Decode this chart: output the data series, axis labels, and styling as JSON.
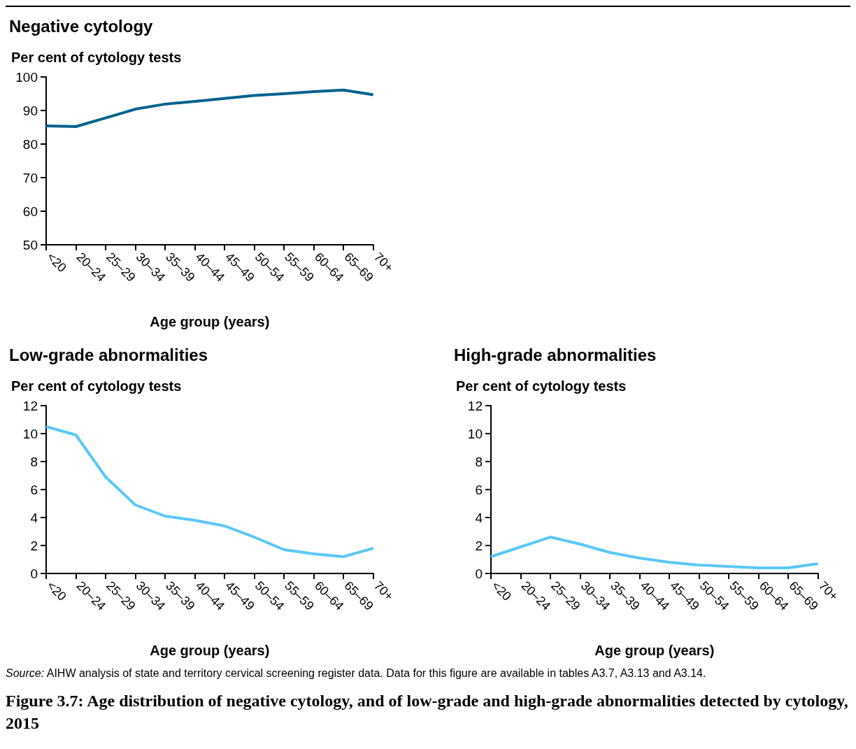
{
  "chart_data": [
    {
      "type": "line",
      "title": "Negative cytology",
      "ylabel": "Per cent of cytology tests",
      "xlabel": "Age group (years)",
      "categories": [
        "<20",
        "20–24",
        "25–29",
        "30–34",
        "35–39",
        "40–44",
        "45–49",
        "50–54",
        "55–59",
        "60–64",
        "65–69",
        "70+"
      ],
      "series": [
        {
          "color": "#00628f",
          "values": [
            85.4,
            85.2,
            87.8,
            90.4,
            91.9,
            92.7,
            93.6,
            94.5,
            95.0,
            95.6,
            96.1,
            94.7
          ]
        }
      ],
      "ylim": [
        50,
        100
      ],
      "yticks": [
        50,
        60,
        70,
        80,
        90,
        100
      ],
      "grid": false,
      "marker": "none",
      "line_style": "solid"
    },
    {
      "type": "line",
      "title": "Low-grade abnormalities",
      "ylabel": "Per cent of cytology tests",
      "xlabel": "Age group (years)",
      "categories": [
        "<20",
        "20–24",
        "25–29",
        "30–34",
        "35–39",
        "40–44",
        "45–49",
        "50–54",
        "55–59",
        "60–64",
        "65–69",
        "70+"
      ],
      "series": [
        {
          "color": "#5bc8fa",
          "values": [
            10.5,
            9.9,
            6.9,
            4.9,
            4.1,
            3.8,
            3.4,
            2.6,
            1.7,
            1.4,
            1.2,
            1.8
          ]
        }
      ],
      "ylim": [
        0,
        12
      ],
      "yticks": [
        0,
        2,
        4,
        6,
        8,
        10,
        12
      ],
      "grid": false,
      "marker": "none",
      "line_style": "solid"
    },
    {
      "type": "line",
      "title": "High-grade abnormalities",
      "ylabel": "Per cent of cytology tests",
      "xlabel": "Age group (years)",
      "categories": [
        "<20",
        "20–24",
        "25–29",
        "30–34",
        "35–39",
        "40–44",
        "45–49",
        "50–54",
        "55–59",
        "60–64",
        "65–69",
        "70+"
      ],
      "series": [
        {
          "color": "#5bc8fa",
          "values": [
            1.2,
            1.9,
            2.6,
            2.1,
            1.5,
            1.1,
            0.8,
            0.6,
            0.5,
            0.4,
            0.4,
            0.7
          ]
        }
      ],
      "ylim": [
        0,
        12
      ],
      "yticks": [
        0,
        2,
        4,
        6,
        8,
        10,
        12
      ],
      "grid": false,
      "marker": "none",
      "line_style": "solid",
      "annotations": [
        "Source: AIHW analysis of state and territory cervical screening register data. Data for this figure are available in tables A3.7, A3.13 and A3.14.",
        "Figure 3.7: Age distribution of negative cytology, and of low-grade and high-grade abnormalities detected by cytology, 2015"
      ]
    }
  ]
}
